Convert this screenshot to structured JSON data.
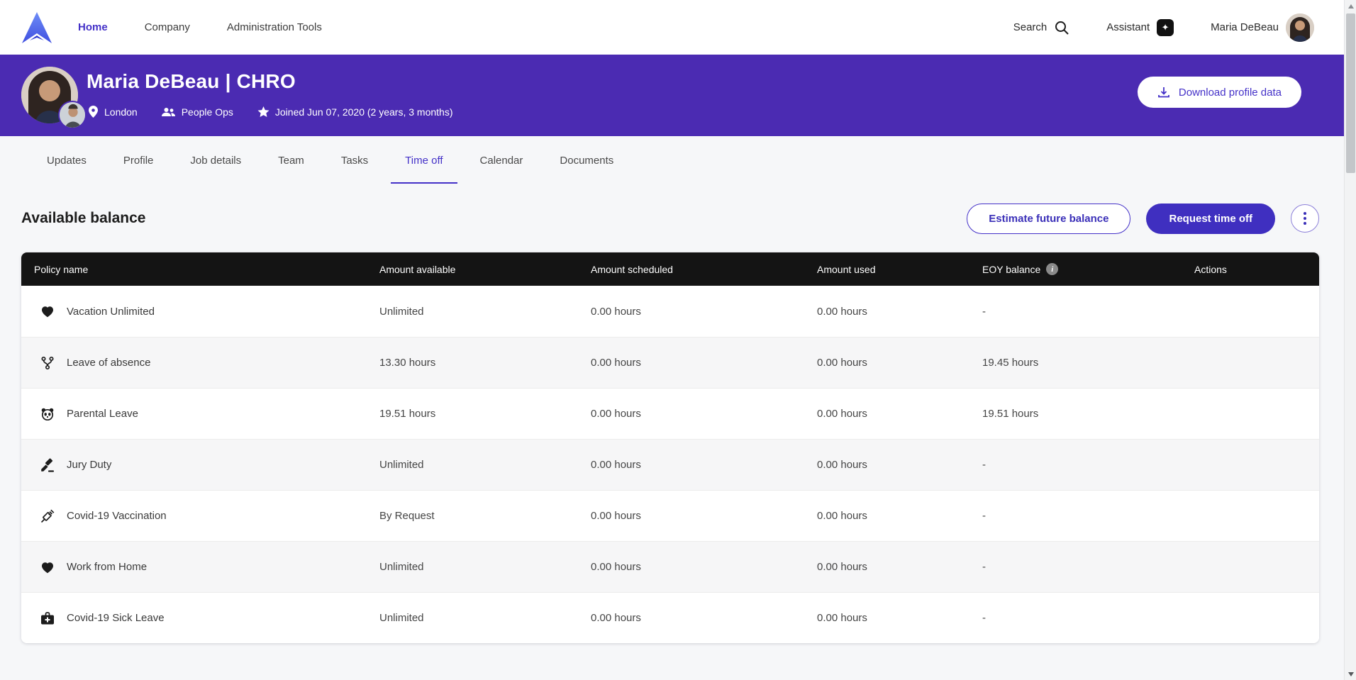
{
  "colors": {
    "header_purple": "#4b2bb2",
    "accent_purple": "#4431c8",
    "primary_button": "#3f2fc0",
    "table_header_bg": "#141414",
    "page_bg": "#f6f7f9"
  },
  "top_nav": {
    "items": [
      {
        "label": "Home",
        "active": true
      },
      {
        "label": "Company",
        "active": false
      },
      {
        "label": "Administration Tools",
        "active": false
      }
    ],
    "search_label": "Search",
    "assistant_label": "Assistant",
    "user_name": "Maria DeBeau"
  },
  "profile_header": {
    "title": "Maria DeBeau | CHRO",
    "location": "London",
    "department": "People Ops",
    "joined": "Joined Jun 07, 2020 (2 years, 3 months)",
    "download_button": "Download profile data"
  },
  "tabs": [
    {
      "label": "Updates",
      "active": false
    },
    {
      "label": "Profile",
      "active": false
    },
    {
      "label": "Job details",
      "active": false
    },
    {
      "label": "Team",
      "active": false
    },
    {
      "label": "Tasks",
      "active": false
    },
    {
      "label": "Time off",
      "active": true
    },
    {
      "label": "Calendar",
      "active": false
    },
    {
      "label": "Documents",
      "active": false
    }
  ],
  "section": {
    "title": "Available balance",
    "estimate_button": "Estimate future balance",
    "request_button": "Request time off"
  },
  "table": {
    "columns": [
      "Policy name",
      "Amount available",
      "Amount scheduled",
      "Amount used",
      "EOY balance",
      "Actions"
    ],
    "rows": [
      {
        "icon": "heart-icon",
        "policy": "Vacation Unlimited",
        "available": "Unlimited",
        "scheduled": "0.00 hours",
        "used": "0.00 hours",
        "eoy": "-",
        "actions": ""
      },
      {
        "icon": "branch-icon",
        "policy": "Leave of absence",
        "available": "13.30 hours",
        "scheduled": "0.00 hours",
        "used": "0.00 hours",
        "eoy": "19.45 hours",
        "actions": ""
      },
      {
        "icon": "panda-icon",
        "policy": "Parental Leave",
        "available": "19.51 hours",
        "scheduled": "0.00 hours",
        "used": "0.00 hours",
        "eoy": "19.51 hours",
        "actions": ""
      },
      {
        "icon": "gavel-icon",
        "policy": "Jury Duty",
        "available": "Unlimited",
        "scheduled": "0.00 hours",
        "used": "0.00 hours",
        "eoy": "-",
        "actions": ""
      },
      {
        "icon": "syringe-icon",
        "policy": "Covid-19 Vaccination",
        "available": "By Request",
        "scheduled": "0.00 hours",
        "used": "0.00 hours",
        "eoy": "-",
        "actions": ""
      },
      {
        "icon": "heart-icon",
        "policy": "Work from Home",
        "available": "Unlimited",
        "scheduled": "0.00 hours",
        "used": "0.00 hours",
        "eoy": "-",
        "actions": ""
      },
      {
        "icon": "medical-bag-icon",
        "policy": "Covid-19 Sick Leave",
        "available": "Unlimited",
        "scheduled": "0.00 hours",
        "used": "0.00 hours",
        "eoy": "-",
        "actions": ""
      }
    ]
  }
}
